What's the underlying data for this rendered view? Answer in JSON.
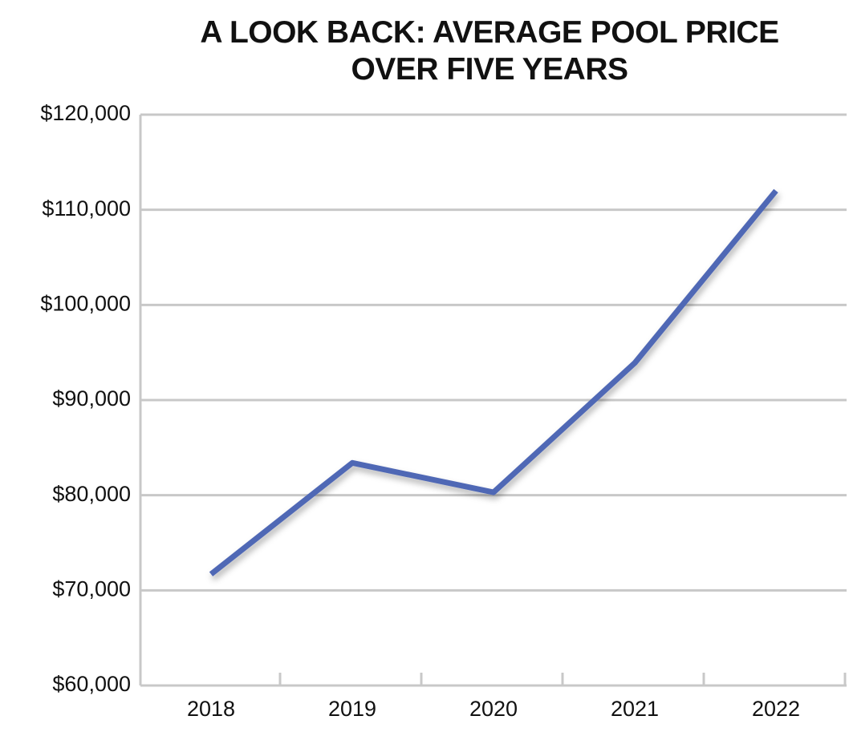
{
  "chart_data": {
    "type": "line",
    "title": "A LOOK BACK: AVERAGE POOL PRICE OVER FIVE YEARS",
    "categories": [
      "2018",
      "2019",
      "2020",
      "2021",
      "2022"
    ],
    "series": [
      {
        "name": "Average pool price",
        "color": "#4f67b5",
        "values": [
          71700,
          83400,
          80300,
          93900,
          112000
        ]
      }
    ],
    "ylim": [
      60000,
      120000
    ],
    "yticks": [
      {
        "value": 60000,
        "label": "$60,000"
      },
      {
        "value": 70000,
        "label": "$70,000"
      },
      {
        "value": 80000,
        "label": "$80,000"
      },
      {
        "value": 90000,
        "label": "$90,000"
      },
      {
        "value": 100000,
        "label": "$100,000"
      },
      {
        "value": 110000,
        "label": "$110,000"
      },
      {
        "value": 120000,
        "label": "$120,000"
      }
    ],
    "grid": true
  }
}
